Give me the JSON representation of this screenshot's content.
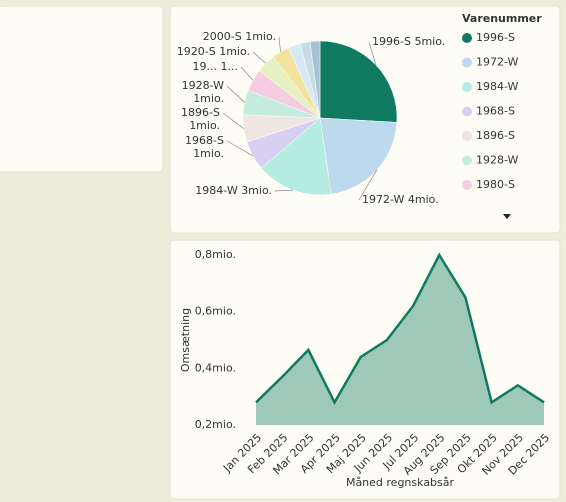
{
  "chart_data": [
    {
      "type": "pie",
      "legend_title": "Varenummer",
      "categories": [
        "1996-S",
        "1972-W",
        "1984-W",
        "1968-S",
        "1896-S",
        "1928-W",
        "1980-S",
        null,
        null,
        null,
        null,
        null
      ],
      "values": [
        5.0,
        4.2,
        3.1,
        1.2,
        1.1,
        1.0,
        0.9,
        0.8,
        0.7,
        0.5,
        0.4,
        0.4
      ],
      "labels": [
        [
          "1996-S 5mio."
        ],
        [
          "1972-W 4mio."
        ],
        [
          "1984-W 3mio."
        ],
        [
          "1968-S",
          "1mio."
        ],
        [
          "1896-S",
          "1mio."
        ],
        [
          "1928-W",
          "1mio."
        ],
        [
          "19... 1..."
        ],
        [
          "1920-S 1mio."
        ],
        [
          "2000-S 1mio."
        ],
        null,
        null,
        null
      ],
      "colors": [
        "#0f7a5f",
        "#bcd9ee",
        "#b6ebe2",
        "#d8d0f2",
        "#efe6e1",
        "#c4ecdf",
        "#f4cde1",
        "#e6f0c2",
        "#f4e39c",
        "#d7e9f5",
        "#c7dde6",
        "#a8c2d3"
      ]
    },
    {
      "type": "area",
      "x_label": "Måned regnskabsår",
      "y_label": "Omsætning",
      "categories": [
        "Jan 2025",
        "Feb 2025",
        "Mar 2025",
        "Apr 2025",
        "Maj 2025",
        "Jun 2025",
        "Jul 2025",
        "Aug 2025",
        "Sep 2025",
        "Okt 2025",
        "Nov 2025",
        "Dec 2025"
      ],
      "values": [
        0.28,
        0.37,
        0.465,
        0.28,
        0.44,
        0.5,
        0.62,
        0.8,
        0.65,
        0.28,
        0.34,
        0.28
      ],
      "ylim": [
        0.2,
        0.8
      ],
      "yticks": [
        {
          "value": 0.2,
          "label": "0,2mio."
        },
        {
          "value": 0.4,
          "label": "0,4mio."
        },
        {
          "value": 0.6,
          "label": "0,6mio."
        },
        {
          "value": 0.8,
          "label": "0,8mio."
        }
      ],
      "color": "#0f7a5f",
      "fill": "#9ec9b9"
    }
  ]
}
